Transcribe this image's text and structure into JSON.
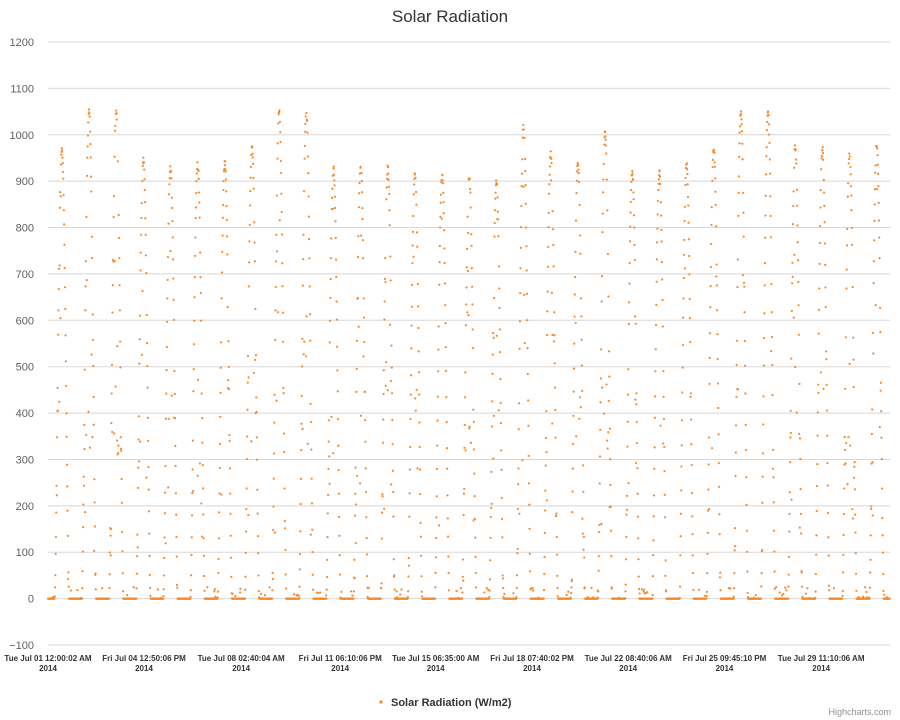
{
  "colors": {
    "series": "#F7892A",
    "grid": "#D8D8D8",
    "text": "#606060"
  },
  "chart_data": {
    "type": "scatter",
    "title": "Solar Radiation",
    "ylim": [
      -100,
      1200
    ],
    "y_ticks": [
      -100,
      0,
      100,
      200,
      300,
      400,
      500,
      600,
      700,
      800,
      900,
      1000,
      1100,
      1200
    ],
    "x_start": "2014-07-01T00:00:00",
    "x_end": "2014-07-31T23:59:59",
    "x_ticks": [
      {
        "time": "2014-07-01T00:00:02",
        "label": "Tue Jul 01 12:00:02 AM",
        "year": "2014"
      },
      {
        "time": "2014-07-04T12:50:06",
        "label": "Fri Jul 04 12:50:06 PM",
        "year": "2014"
      },
      {
        "time": "2014-07-08T02:40:04",
        "label": "Tue Jul 08 02:40:04 AM",
        "year": "2014"
      },
      {
        "time": "2014-07-11T18:10:06",
        "label": "Fri Jul 11 06:10:06 PM",
        "year": "2014"
      },
      {
        "time": "2014-07-15T06:35:00",
        "label": "Tue Jul 15 06:35:00 AM",
        "year": "2014"
      },
      {
        "time": "2014-07-18T19:40:02",
        "label": "Fri Jul 18 07:40:02 PM",
        "year": "2014"
      },
      {
        "time": "2014-07-22T08:40:06",
        "label": "Tue Jul 22 08:40:06 AM",
        "year": "2014"
      },
      {
        "time": "2014-07-25T21:45:10",
        "label": "Fri Jul 25 09:45:10 PM",
        "year": "2014"
      },
      {
        "time": "2014-07-29T11:10:06",
        "label": "Tue Jul 29 11:10:06 AM",
        "year": "2014"
      }
    ],
    "series": [
      {
        "name": "Solar Radiation (W/m2)",
        "marker": "dot",
        "daily_peak": [
          965,
          1050,
          1050,
          945,
          930,
          940,
          940,
          975,
          1050,
          1050,
          930,
          935,
          930,
          915,
          915,
          910,
          900,
          1020,
          960,
          940,
          1005,
          920,
          920,
          935,
          970,
          1050,
          1050,
          975,
          970,
          960,
          980
        ]
      }
    ],
    "legend": {
      "position": "bottom-center"
    },
    "grid": true
  },
  "credits": "Highcharts.com"
}
